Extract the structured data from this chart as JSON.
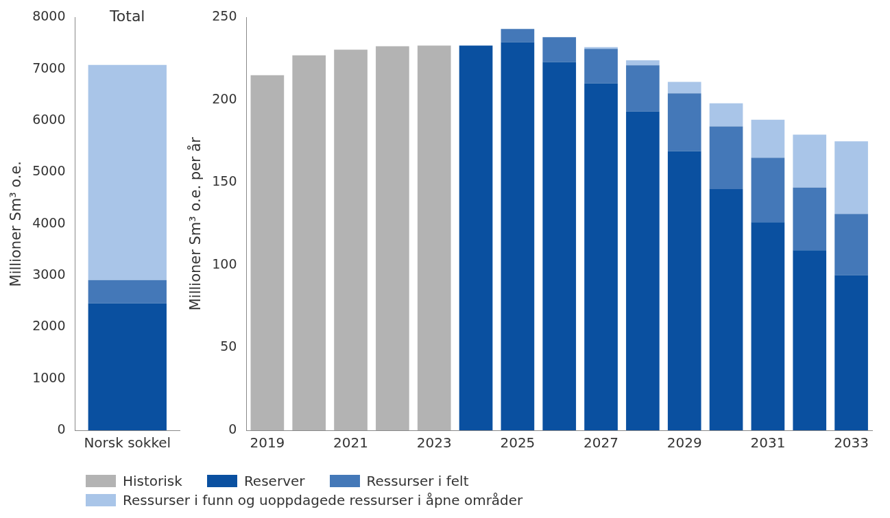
{
  "chart_data": [
    {
      "type": "bar",
      "title": "Total",
      "ylabel": "Millioner Sm³ o.e.",
      "categories": [
        "Norsk sokkel"
      ],
      "stacked": true,
      "ylim": [
        0,
        8000
      ],
      "yticks": [
        0,
        1000,
        2000,
        3000,
        4000,
        5000,
        6000,
        7000,
        8000
      ],
      "grid": false,
      "series": [
        {
          "color": "#0a50a0",
          "values": [
            2460
          ]
        },
        {
          "color": "#4478b8",
          "values": [
            450
          ]
        },
        {
          "color": "#a9c5e8",
          "values": [
            4170
          ]
        }
      ]
    },
    {
      "type": "bar",
      "ylabel": "Millioner Sm³ o.e. per år",
      "categories": [
        "2019",
        null,
        "2021",
        null,
        "2023",
        null,
        "2025",
        null,
        "2027",
        null,
        "2029",
        null,
        "2031",
        null,
        "2033"
      ],
      "stacked": true,
      "ylim": [
        0,
        250
      ],
      "yticks": [
        0,
        50,
        100,
        150,
        200,
        250
      ],
      "grid": false,
      "legend": "bottom",
      "series": [
        {
          "name": "Historisk",
          "color": "#b3b3b3",
          "values": [
            215,
            227,
            230.5,
            232.5,
            233,
            null,
            null,
            null,
            null,
            null,
            null,
            null,
            null,
            null,
            null
          ]
        },
        {
          "name": "Reserver",
          "color": "#0a50a0",
          "values": [
            null,
            null,
            null,
            null,
            null,
            233,
            235,
            223,
            210,
            193,
            169,
            146,
            126,
            109,
            94
          ]
        },
        {
          "name": "Ressurser i felt",
          "color": "#4478b8",
          "values": [
            null,
            null,
            null,
            null,
            null,
            null,
            8,
            15,
            21,
            28,
            35,
            38,
            39,
            38,
            37
          ]
        },
        {
          "name": "Ressurser i funn og uoppdagede ressurser i åpne områder",
          "color": "#a9c5e8",
          "values": [
            null,
            null,
            null,
            null,
            null,
            null,
            null,
            null,
            1,
            3,
            7,
            14,
            23,
            32,
            44
          ]
        }
      ]
    }
  ]
}
